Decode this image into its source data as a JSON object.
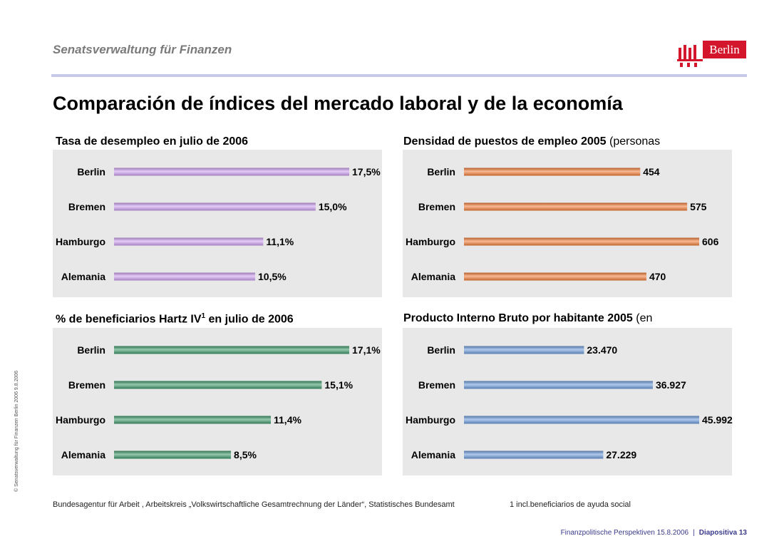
{
  "header": {
    "org": "Senatsverwaltung für Finanzen",
    "logo_text": "Berlin",
    "title": "Comparación de índices del mercado laboral y de la economía"
  },
  "colors": {
    "purple": "#cfa3f2",
    "orange": "#f47f3a",
    "green": "#3f9a6a",
    "blue": "#6e9ddd",
    "accent_red": "#d4162c",
    "rule": "#c7c9e8"
  },
  "panels": [
    {
      "title": "Tasa de desempleo en julio de 2006",
      "title_extra": "",
      "sup": "",
      "title_tail": ""
    },
    {
      "title": "Densidad de puestos de empleo 2005",
      "title_extra": "(personas",
      "sup": "",
      "title_tail": ""
    },
    {
      "title": "% de beneficiarios Hartz IV",
      "title_extra": "",
      "sup": "1",
      "title_tail": " en julio de 2006"
    },
    {
      "title": "Producto Interno Bruto por habitante 2005",
      "title_extra": "(en",
      "sup": "",
      "title_tail": ""
    }
  ],
  "chart_data": [
    {
      "type": "bar",
      "orientation": "horizontal",
      "categories": [
        "Berlin",
        "Bremen",
        "Hamburgo",
        "Alemania"
      ],
      "values": [
        17.5,
        15.0,
        11.1,
        10.5
      ],
      "labels": [
        "17,5%",
        "15,0%",
        "11,1%",
        "10,5%"
      ],
      "color": "purple"
    },
    {
      "type": "bar",
      "orientation": "horizontal",
      "categories": [
        "Berlin",
        "Bremen",
        "Hamburgo",
        "Alemania"
      ],
      "values": [
        454,
        575,
        606,
        470
      ],
      "labels": [
        "454",
        "575",
        "606",
        "470"
      ],
      "color": "orange"
    },
    {
      "type": "bar",
      "orientation": "horizontal",
      "categories": [
        "Berlin",
        "Bremen",
        "Hamburgo",
        "Alemania"
      ],
      "values": [
        17.1,
        15.1,
        11.4,
        8.5
      ],
      "labels": [
        "17,1%",
        "15,1%",
        "11,4%",
        "8,5%"
      ],
      "color": "green"
    },
    {
      "type": "bar",
      "orientation": "horizontal",
      "categories": [
        "Berlin",
        "Bremen",
        "Hamburgo",
        "Alemania"
      ],
      "values": [
        23470,
        36927,
        45992,
        27229
      ],
      "labels": [
        "23.470",
        "36.927",
        "45.992",
        "27.229"
      ],
      "color": "blue"
    }
  ],
  "footer": {
    "source": "Bundesagentur für Arbeit , Arbeitskreis „Volkswirtschaftliche Gesamtrechnung der Länder“, Statistisches Bundesamt",
    "footnote": "1 incl.beneficiarios de ayuda social",
    "side_note": "© Senatsverwaltung für Finanzen Berlin 2006    9.8.2006",
    "presentation": "Finanzpolitische Perspektiven 15.8.2006",
    "separator": "|",
    "slide": "Diapositiva 13"
  }
}
